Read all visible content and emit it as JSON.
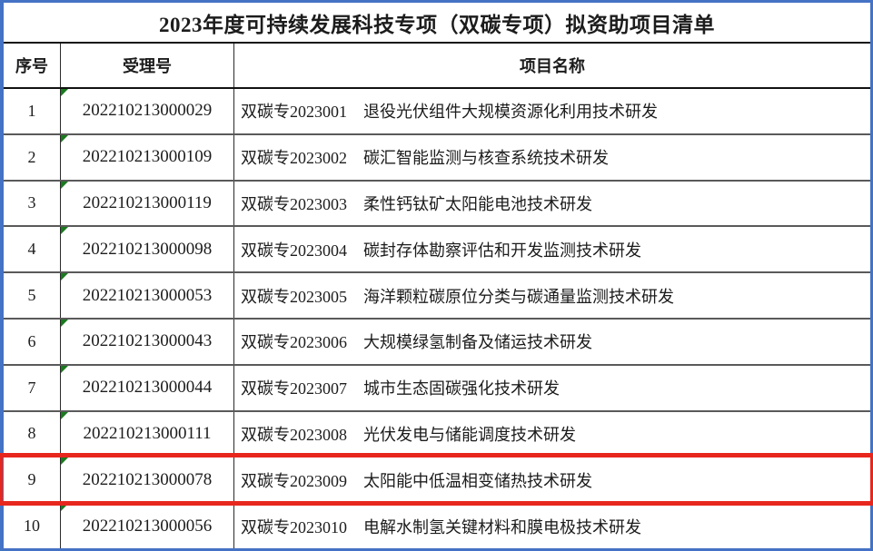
{
  "title": "2023年度可持续发展科技专项（双碳专项）拟资助项目清单",
  "table": {
    "columns": {
      "no": "序号",
      "acceptance_no": "受理号",
      "project_name": "项目名称"
    },
    "rows": [
      {
        "no": "1",
        "acceptance_no": "202210213000029",
        "project_name": "双碳专2023001　退役光伏组件大规模资源化利用技术研发"
      },
      {
        "no": "2",
        "acceptance_no": "202210213000109",
        "project_name": "双碳专2023002　碳汇智能监测与核查系统技术研发"
      },
      {
        "no": "3",
        "acceptance_no": "202210213000119",
        "project_name": "双碳专2023003　柔性钙钛矿太阳能电池技术研发"
      },
      {
        "no": "4",
        "acceptance_no": "202210213000098",
        "project_name": "双碳专2023004　碳封存体勘察评估和开发监测技术研发"
      },
      {
        "no": "5",
        "acceptance_no": "202210213000053",
        "project_name": "双碳专2023005　海洋颗粒碳原位分类与碳通量监测技术研发"
      },
      {
        "no": "6",
        "acceptance_no": "202210213000043",
        "project_name": "双碳专2023006　大规模绿氢制备及储运技术研发"
      },
      {
        "no": "7",
        "acceptance_no": "202210213000044",
        "project_name": "双碳专2023007　城市生态固碳强化技术研发"
      },
      {
        "no": "8",
        "acceptance_no": "202210213000111",
        "project_name": "双碳专2023008　光伏发电与储能调度技术研发"
      },
      {
        "no": "9",
        "acceptance_no": "202210213000078",
        "project_name": "双碳专2023009　太阳能中低温相变储热技术研发"
      },
      {
        "no": "10",
        "acceptance_no": "202210213000056",
        "project_name": "双碳专2023010　电解水制氢关键材料和膜电极技术研发"
      }
    ],
    "highlighted_row_no": "9"
  },
  "colors": {
    "outer_border": "#4472c4",
    "row_separator": "#5a5a5a",
    "header_separator": "#111111",
    "cell_flag_green": "#1a7a1f",
    "highlight_red": "#e7271e",
    "text": "#1c1c1c"
  }
}
